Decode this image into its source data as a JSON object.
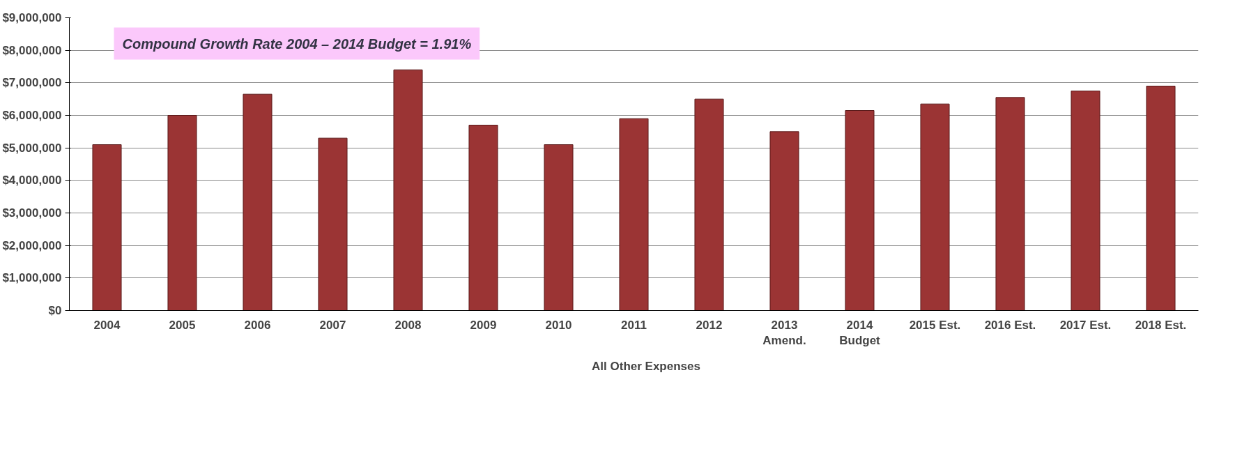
{
  "chart_data": {
    "type": "bar",
    "categories": [
      "2004",
      "2005",
      "2006",
      "2007",
      "2008",
      "2009",
      "2010",
      "2011",
      "2012",
      "2013\nAmend.",
      "2014\nBudget",
      "2015 Est.",
      "2016 Est.",
      "2017 Est.",
      "2018 Est."
    ],
    "series": [
      {
        "name": "All Other Expenses",
        "color": "#9b3434",
        "values": [
          5100000,
          6000000,
          6650000,
          5300000,
          7400000,
          5700000,
          5100000,
          5900000,
          6500000,
          5500000,
          6150000,
          6350000,
          6550000,
          6750000,
          6900000
        ]
      }
    ],
    "ylim": [
      0,
      9000000
    ],
    "yticks": [
      {
        "value": 0,
        "label": "$0"
      },
      {
        "value": 1000000,
        "label": "$1,000,000"
      },
      {
        "value": 2000000,
        "label": "$2,000,000"
      },
      {
        "value": 3000000,
        "label": "$3,000,000"
      },
      {
        "value": 4000000,
        "label": "$4,000,000"
      },
      {
        "value": 5000000,
        "label": "$5,000,000"
      },
      {
        "value": 6000000,
        "label": "$6,000,000"
      },
      {
        "value": 7000000,
        "label": "$7,000,000"
      },
      {
        "value": 8000000,
        "label": "$8,000,000"
      },
      {
        "value": 9000000,
        "label": "$9,000,000"
      }
    ],
    "annotations": [
      "Compound Growth Rate 2004 – 2014 Budget = 1.91%"
    ],
    "grid": "y",
    "legend": "bottom"
  }
}
